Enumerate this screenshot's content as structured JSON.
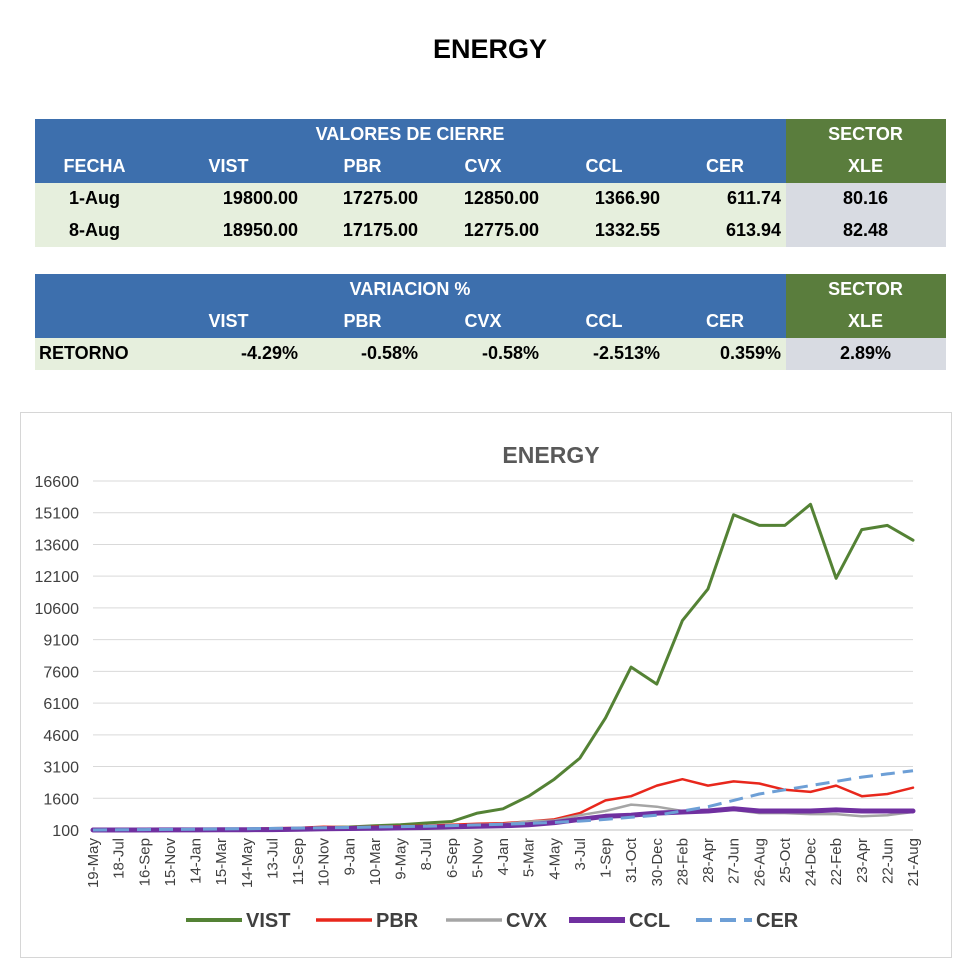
{
  "page": {
    "title": "ENERGY"
  },
  "close_table": {
    "group_header": "VALORES DE CIERRE",
    "sector_header": "SECTOR",
    "columns": [
      "FECHA",
      "VIST",
      "PBR",
      "CVX",
      "CCL",
      "CER",
      "XLE"
    ],
    "rows": [
      [
        "1-Aug",
        "19800.00",
        "17275.00",
        "12850.00",
        "1366.90",
        "611.74",
        "80.16"
      ],
      [
        "8-Aug",
        "18950.00",
        "17175.00",
        "12775.00",
        "1332.55",
        "613.94",
        "82.48"
      ]
    ]
  },
  "variation_table": {
    "group_header": "VARIACION %",
    "sector_header": "SECTOR",
    "columns": [
      "",
      "VIST",
      "PBR",
      "CVX",
      "CCL",
      "CER",
      "XLE"
    ],
    "rows": [
      [
        "RETORNO",
        "-4.29%",
        "-0.58%",
        "-0.58%",
        "-2.513%",
        "0.359%",
        "2.89%"
      ]
    ]
  },
  "chart_data": {
    "type": "line",
    "title": "ENERGY",
    "ylim": [
      100,
      16600
    ],
    "yticks": [
      "100",
      "1600",
      "3100",
      "4600",
      "6100",
      "7600",
      "9100",
      "10600",
      "12100",
      "13600",
      "15100",
      "16600"
    ],
    "xtick_labels": [
      "19-May",
      "18-Jul",
      "16-Sep",
      "15-Nov",
      "14-Jan",
      "15-Mar",
      "14-May",
      "13-Jul",
      "11-Sep",
      "10-Nov",
      "9-Jan",
      "10-Mar",
      "9-May",
      "8-Jul",
      "6-Sep",
      "5-Nov",
      "4-Jan",
      "5-Mar",
      "4-May",
      "3-Jul",
      "1-Sep",
      "31-Oct",
      "30-Dec",
      "28-Feb",
      "28-Apr",
      "27-Jun",
      "26-Aug",
      "25-Oct",
      "24-Dec",
      "22-Feb",
      "23-Apr",
      "22-Jun",
      "21-Aug"
    ],
    "x": [
      0,
      1,
      2,
      3,
      4,
      5,
      6,
      7,
      8,
      9,
      10,
      11,
      12,
      13,
      14,
      15,
      16,
      17,
      18,
      19,
      20,
      21,
      22,
      23,
      24,
      25,
      26,
      27,
      28,
      29,
      30,
      31,
      32
    ],
    "grid": true,
    "legend": "bottom",
    "series": [
      {
        "name": "VIST",
        "color": "#548235",
        "style": "solid",
        "width": 3,
        "values": [
          100,
          100,
          105,
          110,
          112,
          115,
          120,
          150,
          170,
          220,
          240,
          300,
          350,
          430,
          500,
          900,
          1100,
          1700,
          2500,
          3500,
          5400,
          7800,
          7000,
          10000,
          11500,
          15000,
          14500,
          14500,
          15500,
          12000,
          14300,
          14500,
          13800
        ]
      },
      {
        "name": "PBR",
        "color": "#e8271c",
        "style": "solid",
        "width": 2.5,
        "values": [
          100,
          100,
          100,
          110,
          120,
          140,
          150,
          180,
          200,
          250,
          230,
          260,
          280,
          300,
          350,
          400,
          420,
          500,
          600,
          900,
          1500,
          1700,
          2200,
          2500,
          2200,
          2400,
          2300,
          2000,
          1900,
          2200,
          1700,
          1800,
          2100
        ]
      },
      {
        "name": "CVX",
        "color": "#a5a5a5",
        "style": "solid",
        "width": 2.5,
        "values": [
          100,
          100,
          100,
          105,
          110,
          120,
          125,
          130,
          150,
          180,
          200,
          200,
          220,
          250,
          300,
          350,
          380,
          500,
          550,
          800,
          1000,
          1300,
          1200,
          1000,
          950,
          1050,
          900,
          900,
          850,
          850,
          750,
          800,
          950
        ]
      },
      {
        "name": "CCL",
        "color": "#7030a0",
        "style": "solid",
        "width": 5,
        "values": [
          100,
          100,
          100,
          105,
          105,
          110,
          115,
          120,
          140,
          160,
          170,
          180,
          200,
          220,
          250,
          280,
          300,
          350,
          450,
          600,
          750,
          800,
          900,
          950,
          1000,
          1100,
          1000,
          1000,
          1000,
          1050,
          1000,
          1000,
          1000
        ]
      },
      {
        "name": "CER",
        "color": "#6d9fd6",
        "style": "dashed",
        "width": 3,
        "values": [
          100,
          110,
          120,
          130,
          140,
          150,
          160,
          175,
          190,
          205,
          220,
          240,
          260,
          280,
          310,
          340,
          370,
          410,
          460,
          520,
          600,
          700,
          800,
          1000,
          1200,
          1500,
          1800,
          2000,
          2200,
          2400,
          2600,
          2750,
          2900
        ]
      }
    ]
  }
}
